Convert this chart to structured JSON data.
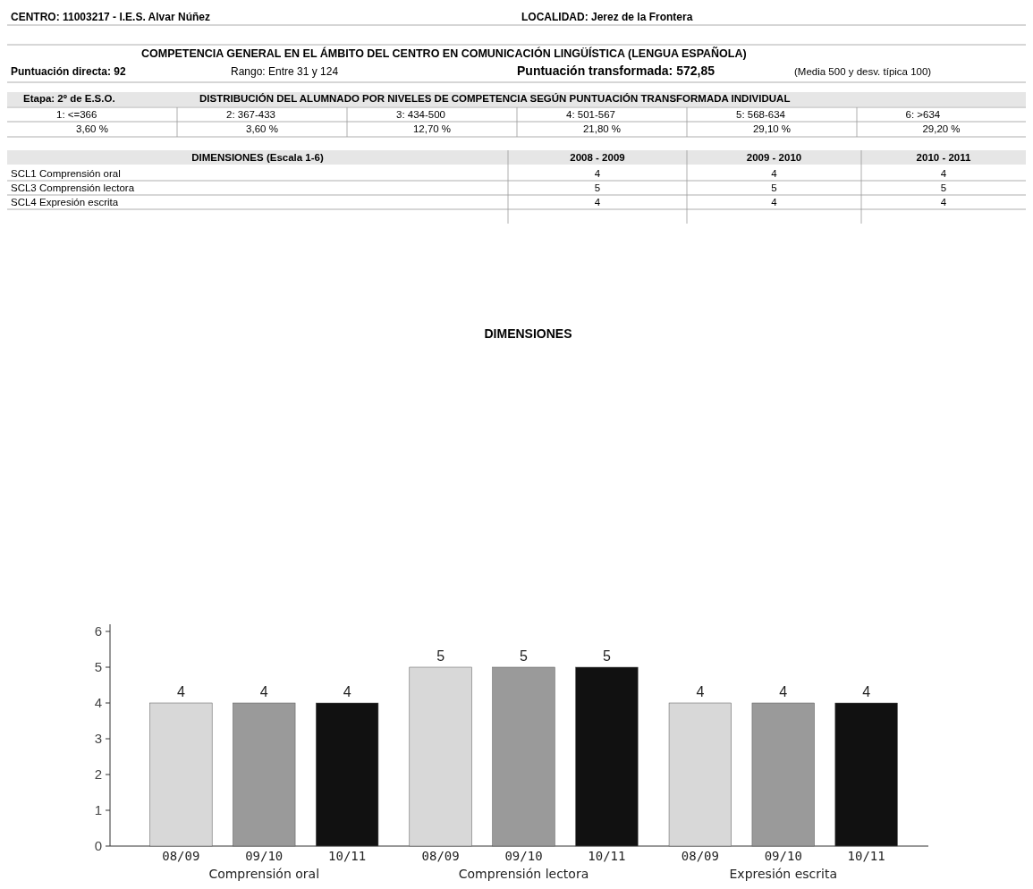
{
  "chart_data": [
    {
      "type": "other",
      "annotations": [
        "CENTRO: 11003217 - I.E.S. Alvar Núñez",
        "LOCALIDAD: Jerez de la Frontera",
        "COMPETENCIA GENERAL EN EL ÁMBITO DEL CENTRO EN COMUNICACIÓN LINGÜÍSTICA (LENGUA ESPAÑOLA)",
        "Puntuación directa: 92",
        "Rango: Entre 31 y 124",
        "Puntuación transformada: 572,85",
        "(Media 500 y desv. típica 100)",
        "Etapa: 2º de E.S.O.",
        "DISTRIBUCIÓN DEL ALUMNADO POR NIVELES DE COMPETENCIA SEGÚN PUNTUACIÓN TRANSFORMADA INDIVIDUAL",
        "1: <=366",
        "2: 367-433",
        "3: 434-500",
        "4: 501-567",
        "5: 568-634",
        "6: >634",
        "3,60 %",
        "3,60 %",
        "12,70 %",
        "21,80 %",
        "29,10 %",
        "29,20 %",
        "DIMENSIONES (Escala 1-6)",
        "2008 - 2009",
        "2009 - 2010",
        "2010 - 2011",
        "SCL1 Comprensión oral",
        "4",
        "4",
        "4",
        "SCL3 Comprensión lectora",
        "5",
        "5",
        "5",
        "SCL4 Expresión escrita",
        "4",
        "4",
        "4"
      ]
    },
    {
      "type": "bar",
      "title": "DIMENSIONES",
      "categories": [
        "Comprensión oral",
        "Comprensión lectora",
        "Expresión escrita"
      ],
      "series": [
        {
          "name": "08/09",
          "color": "#d8d8d8",
          "values": [
            4,
            5,
            4
          ]
        },
        {
          "name": "09/10",
          "color": "#9a9a9a",
          "values": [
            4,
            5,
            4
          ]
        },
        {
          "name": "10/11",
          "color": "#111111",
          "values": [
            4,
            5,
            4
          ]
        }
      ],
      "ylim": [
        0,
        6.2
      ],
      "yticks": [
        0,
        1,
        2,
        3,
        4,
        5,
        6
      ],
      "data_labels": true
    }
  ]
}
